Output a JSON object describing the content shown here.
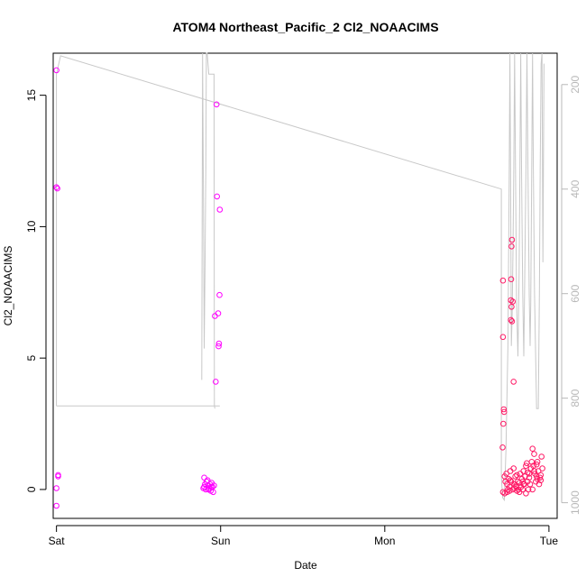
{
  "chart_data": {
    "type": "scatter",
    "title": "ATOM4 Northeast_Pacific_2 Cl2_NOAACIMS",
    "xlabel": "Date",
    "ylabel": "Cl2_NOAACIMS",
    "x_unit": "days",
    "xlim": [
      -0.02,
      3.05
    ],
    "ylim": [
      -1.1,
      16.6
    ],
    "x_ticks": [
      {
        "value": 0,
        "label": "Sat"
      },
      {
        "value": 1,
        "label": "Sun"
      },
      {
        "value": 2,
        "label": "Mon"
      },
      {
        "value": 3,
        "label": "Tue"
      }
    ],
    "y_ticks": [
      0,
      5,
      10,
      15
    ],
    "right_axis": {
      "ylim": [
        1030,
        140
      ],
      "ticks": [
        200,
        400,
        600,
        800,
        1000
      ],
      "color": "#b8b8b8"
    },
    "grid": false,
    "point_color_high": "#ff00ff",
    "point_color_low": "#ff1a66",
    "line_color": "#c8c8c8",
    "series": [
      {
        "kind": "points",
        "points": [
          [
            0.0,
            15.95
          ],
          [
            0.0,
            11.5
          ],
          [
            0.005,
            11.45
          ],
          [
            0.01,
            0.55
          ],
          [
            0.01,
            0.5
          ],
          [
            0.0,
            0.05
          ],
          [
            0.0,
            -0.62
          ],
          [
            0.895,
            0.05
          ],
          [
            0.9,
            0.1
          ],
          [
            0.9,
            0.45
          ],
          [
            0.91,
            0.0
          ],
          [
            0.915,
            0.3
          ],
          [
            0.92,
            0.35
          ],
          [
            0.925,
            0.15
          ],
          [
            0.93,
            0.05
          ],
          [
            0.935,
            0.2
          ],
          [
            0.94,
            -0.05
          ],
          [
            0.945,
            0.25
          ],
          [
            0.95,
            0.1
          ],
          [
            0.955,
            -0.1
          ],
          [
            0.96,
            0.15
          ],
          [
            0.905,
            0.2
          ],
          [
            0.925,
            0.0
          ],
          [
            0.942,
            0.1
          ],
          [
            0.965,
            6.6
          ],
          [
            0.97,
            4.1
          ],
          [
            0.975,
            14.65
          ],
          [
            0.978,
            11.15
          ],
          [
            0.985,
            6.7
          ],
          [
            0.988,
            5.45
          ],
          [
            0.99,
            5.55
          ],
          [
            0.993,
            7.4
          ],
          [
            0.995,
            10.65
          ],
          [
            2.72,
            7.95
          ],
          [
            2.72,
            5.8
          ],
          [
            2.718,
            1.6
          ],
          [
            2.722,
            2.5
          ],
          [
            2.725,
            3.05
          ],
          [
            2.727,
            2.95
          ],
          [
            2.72,
            -0.1
          ],
          [
            2.73,
            -0.15
          ],
          [
            2.775,
            9.5
          ],
          [
            2.772,
            9.25
          ],
          [
            2.77,
            8.0
          ],
          [
            2.768,
            7.2
          ],
          [
            2.772,
            6.95
          ],
          [
            2.779,
            7.15
          ],
          [
            2.768,
            6.45
          ],
          [
            2.775,
            6.4
          ],
          [
            2.785,
            4.1
          ],
          [
            2.73,
            0.5
          ],
          [
            2.735,
            0.3
          ],
          [
            2.74,
            0.6
          ],
          [
            2.745,
            0.2
          ],
          [
            2.75,
            0.0
          ],
          [
            2.755,
            0.4
          ],
          [
            2.76,
            0.1
          ],
          [
            2.765,
            0.7
          ],
          [
            2.77,
            0.3
          ],
          [
            2.78,
            0.0
          ],
          [
            2.785,
            0.8
          ],
          [
            2.79,
            0.2
          ],
          [
            2.795,
            0.5
          ],
          [
            2.8,
            0.1
          ],
          [
            2.805,
            -0.05
          ],
          [
            2.81,
            0.3
          ],
          [
            2.815,
            0.0
          ],
          [
            2.82,
            0.25
          ],
          [
            2.825,
            0.6
          ],
          [
            2.83,
            0.1
          ],
          [
            2.835,
            0.4
          ],
          [
            2.84,
            0.0
          ],
          [
            2.845,
            0.7
          ],
          [
            2.85,
            0.2
          ],
          [
            2.855,
            0.5
          ],
          [
            2.86,
            0.9
          ],
          [
            2.865,
            1.0
          ],
          [
            2.87,
            0.3
          ],
          [
            2.875,
            0.0
          ],
          [
            2.88,
            0.6
          ],
          [
            2.885,
            0.2
          ],
          [
            2.89,
            0.8
          ],
          [
            2.895,
            1.05
          ],
          [
            2.9,
            1.55
          ],
          [
            2.905,
            0.9
          ],
          [
            2.91,
            1.35
          ],
          [
            2.915,
            0.6
          ],
          [
            2.92,
            0.3
          ],
          [
            2.925,
            0.5
          ],
          [
            2.93,
            0.4
          ],
          [
            2.935,
            0.7
          ],
          [
            2.94,
            0.2
          ],
          [
            2.945,
            0.45
          ],
          [
            2.95,
            0.35
          ],
          [
            2.955,
            1.25
          ],
          [
            2.96,
            0.8
          ],
          [
            2.745,
            -0.1
          ],
          [
            2.76,
            -0.05
          ],
          [
            2.79,
            0.05
          ],
          [
            2.8,
            0.15
          ],
          [
            2.82,
            -0.1
          ],
          [
            2.84,
            0.3
          ],
          [
            2.86,
            -0.15
          ],
          [
            2.88,
            0.45
          ],
          [
            2.9,
            0.0
          ],
          [
            2.91,
            0.7
          ],
          [
            2.93,
            1.05
          ],
          [
            2.95,
            0.55
          ],
          [
            2.765,
            0.35
          ],
          [
            2.805,
            0.55
          ],
          [
            2.845,
            0.2
          ],
          [
            2.87,
            0.65
          ],
          [
            2.925,
            0.95
          ]
        ]
      },
      {
        "kind": "line",
        "name": "",
        "points": [
          [
            0.0,
            815
          ],
          [
            0.0,
            180
          ],
          [
            0.025,
            145
          ],
          [
            2.71,
            400
          ],
          [
            2.71,
            950
          ],
          [
            2.718,
            990
          ],
          [
            2.728,
            995
          ],
          [
            2.738,
            900
          ],
          [
            2.75,
            700
          ],
          [
            2.758,
            380
          ],
          [
            2.762,
            140
          ],
          [
            2.766,
            360
          ],
          [
            2.771,
            700
          ],
          [
            2.776,
            640
          ],
          [
            2.781,
            520
          ],
          [
            2.786,
            360
          ],
          [
            2.791,
            140
          ],
          [
            2.796,
            360
          ],
          [
            2.803,
            620
          ],
          [
            2.811,
            720
          ],
          [
            2.818,
            560
          ],
          [
            2.823,
            360
          ],
          [
            2.828,
            140
          ],
          [
            2.833,
            360
          ],
          [
            2.84,
            600
          ],
          [
            2.847,
            720
          ],
          [
            2.853,
            560
          ],
          [
            2.86,
            360
          ],
          [
            2.866,
            140
          ],
          [
            2.872,
            360
          ],
          [
            2.88,
            600
          ],
          [
            2.885,
            700
          ],
          [
            2.889,
            620
          ],
          [
            2.895,
            360
          ],
          [
            2.9,
            140
          ],
          [
            2.905,
            360
          ],
          [
            2.912,
            600
          ],
          [
            2.925,
            820
          ],
          [
            2.935,
            820
          ],
          [
            2.942,
            600
          ],
          [
            2.947,
            360
          ],
          [
            2.952,
            160
          ],
          [
            2.958,
            140
          ],
          [
            2.963,
            540
          ],
          [
            2.97,
            160
          ]
        ]
      },
      {
        "kind": "line",
        "name": "",
        "points": [
          [
            0.0,
            815
          ],
          [
            0.995,
            815
          ]
        ]
      },
      {
        "kind": "line",
        "name": "",
        "points": [
          [
            0.885,
            765
          ],
          [
            0.89,
            140
          ],
          [
            0.895,
            400
          ],
          [
            0.9,
            705
          ],
          [
            0.905,
            550
          ],
          [
            0.91,
            360
          ],
          [
            0.913,
            140
          ],
          [
            0.918,
            140
          ],
          [
            0.928,
            180
          ],
          [
            0.96,
            180
          ],
          [
            0.962,
            815
          ],
          [
            0.965,
            820
          ]
        ]
      }
    ]
  }
}
